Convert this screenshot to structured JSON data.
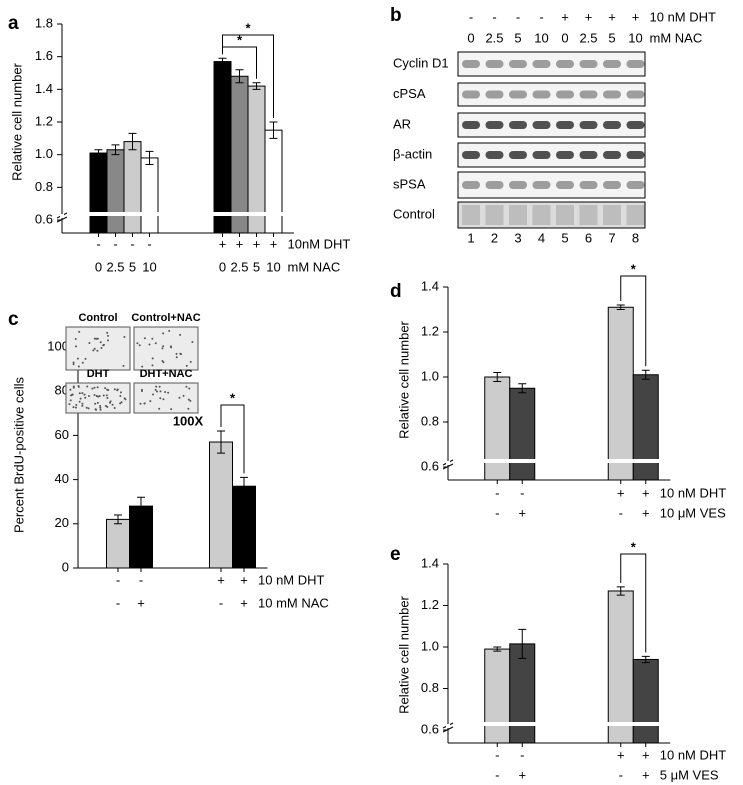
{
  "chart_data": [
    {
      "type": "bar",
      "label": "a",
      "ylabel": "Relative cell number",
      "ylim": [
        0.6,
        1.8
      ],
      "yticks": [
        0.6,
        0.8,
        {
          "value": 1,
          "label": "1.0"
        },
        1.2,
        1.4,
        1.6,
        1.8
      ],
      "categories": [
        null,
        null
      ],
      "series": [
        {
          "color": "#000000",
          "values": [
            1.01,
            1.57
          ],
          "errors": [
            0.02,
            0.02
          ]
        },
        {
          "color": "#888888",
          "values": [
            1.03,
            1.48
          ],
          "errors": [
            0.03,
            0.04
          ]
        },
        {
          "color": "#cccccc",
          "values": [
            1.08,
            1.42
          ],
          "errors": [
            0.05,
            0.02
          ]
        },
        {
          "color": "#ffffff",
          "values": [
            0.98,
            1.15
          ],
          "errors": [
            0.04,
            0.05
          ]
        }
      ],
      "conditions": [
        {
          "name": "10nM DHT",
          "marks": [
            "-",
            "-",
            "-",
            "-",
            "+",
            "+",
            "+",
            "+"
          ]
        },
        {
          "name": "mM NAC",
          "marks": [
            "0",
            "2.5",
            "5",
            "10",
            "0",
            "2.5",
            "5",
            "10"
          ]
        }
      ],
      "annotations": [
        "*",
        "*"
      ]
    },
    {
      "type": "blot",
      "label": "b",
      "conditions": [
        {
          "name": "10 nM DHT",
          "marks": [
            "-",
            "-",
            "-",
            "-",
            "+",
            "+",
            "+",
            "+"
          ]
        },
        {
          "name": "mM NAC",
          "marks": [
            "0",
            "2.5",
            "5",
            "10",
            "0",
            "2.5",
            "5",
            "10"
          ]
        }
      ],
      "rows": [
        "Cyclin D1",
        "cPSA",
        "AR",
        "β-actin",
        "sPSA",
        "Control"
      ],
      "lanes": [
        "1",
        "2",
        "3",
        "4",
        "5",
        "6",
        "7",
        "8"
      ]
    },
    {
      "type": "bar",
      "label": "c",
      "ylabel": "Percent BrdU-positive cells",
      "ylim": [
        0,
        100
      ],
      "yticks": [
        0,
        20,
        40,
        60,
        80,
        100
      ],
      "categories": [
        null,
        null
      ],
      "series": [
        {
          "color": "#cccccc",
          "values": [
            22,
            57
          ],
          "errors": [
            2,
            5
          ]
        },
        {
          "color": "#000000",
          "values": [
            28,
            37
          ],
          "errors": [
            4,
            4
          ]
        }
      ],
      "conditions": [
        {
          "name": "10 nM DHT",
          "marks": [
            "-",
            "-",
            "+",
            "+"
          ]
        },
        {
          "name": "10 mM NAC",
          "marks": [
            "-",
            "+",
            "-",
            "+"
          ]
        }
      ],
      "annotations": [
        "*"
      ],
      "insets": [
        "Control",
        "Control+NAC",
        "DHT",
        "DHT+NAC"
      ],
      "magnification": "100X"
    },
    {
      "type": "bar",
      "label": "d",
      "ylabel": "Relative cell number",
      "ylim": [
        0.6,
        1.4
      ],
      "yticks": [
        0.6,
        0.8,
        {
          "value": 1,
          "label": "1.0"
        },
        1.2,
        1.4
      ],
      "categories": [
        null,
        null
      ],
      "series": [
        {
          "color": "#cccccc",
          "values": [
            1.0,
            1.31
          ],
          "errors": [
            0.02,
            0.01
          ]
        },
        {
          "color": "#444444",
          "values": [
            0.95,
            1.01
          ],
          "errors": [
            0.02,
            0.02
          ]
        }
      ],
      "conditions": [
        {
          "name": "10 nM DHT",
          "marks": [
            "-",
            "-",
            "+",
            "+"
          ]
        },
        {
          "name": "10 μM VES",
          "marks": [
            "-",
            "+",
            "-",
            "+"
          ]
        }
      ],
      "annotations": [
        "*"
      ]
    },
    {
      "type": "bar",
      "label": "e",
      "ylabel": "Relative cell number",
      "ylim": [
        0.6,
        1.4
      ],
      "yticks": [
        0.6,
        0.8,
        {
          "value": 1,
          "label": "1.0"
        },
        1.2,
        1.4
      ],
      "categories": [
        null,
        null
      ],
      "series": [
        {
          "color": "#cccccc",
          "values": [
            0.99,
            1.27
          ],
          "errors": [
            0.01,
            0.02
          ]
        },
        {
          "color": "#444444",
          "values": [
            1.015,
            0.94
          ],
          "errors": [
            0.07,
            0.015
          ]
        }
      ],
      "conditions": [
        {
          "name": "10 nM DHT",
          "marks": [
            "-",
            "-",
            "+",
            "+"
          ]
        },
        {
          "name": "5 μM VES",
          "marks": [
            "-",
            "+",
            "-",
            "+"
          ]
        }
      ],
      "annotations": [
        "*"
      ]
    }
  ]
}
